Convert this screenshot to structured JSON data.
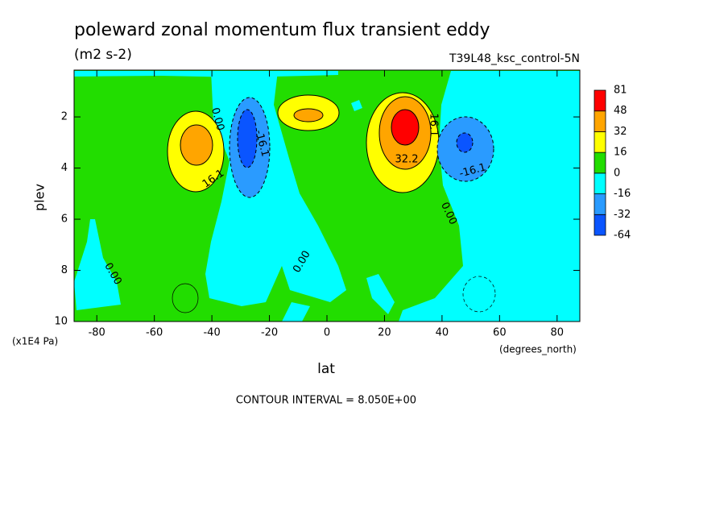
{
  "chart_data": {
    "type": "contour",
    "title": "poleward zonal momentum flux transient eddy",
    "units": "(m2 s-2)",
    "dataset": "T39L48_ksc_control-5N",
    "xlabel": "lat",
    "x_units": "(degrees_north)",
    "ylabel": "plev",
    "y_units": "(x1E4 Pa)",
    "xlim": [
      -87.9,
      87.9
    ],
    "xticks": [
      -80,
      -60,
      -40,
      -20,
      0,
      20,
      40,
      60,
      80
    ],
    "ylim": [
      10,
      0.17
    ],
    "yticks": [
      10,
      8,
      6,
      4,
      2
    ],
    "levels": [
      -64,
      -32,
      -16,
      0,
      16,
      32,
      48,
      81
    ],
    "colors": [
      "#0a55ff",
      "#2a9bff",
      "#00ffff",
      "#22dd00",
      "#ffff00",
      "#ffa500",
      "#ff0000"
    ],
    "contour_labels": [
      "0.00",
      "-16.1",
      "16.1",
      "32.2",
      "16.1",
      "-16.1",
      "0.00",
      "0.00",
      "0.00"
    ],
    "note": "CONTOUR INTERVAL = 8.050E+00"
  }
}
